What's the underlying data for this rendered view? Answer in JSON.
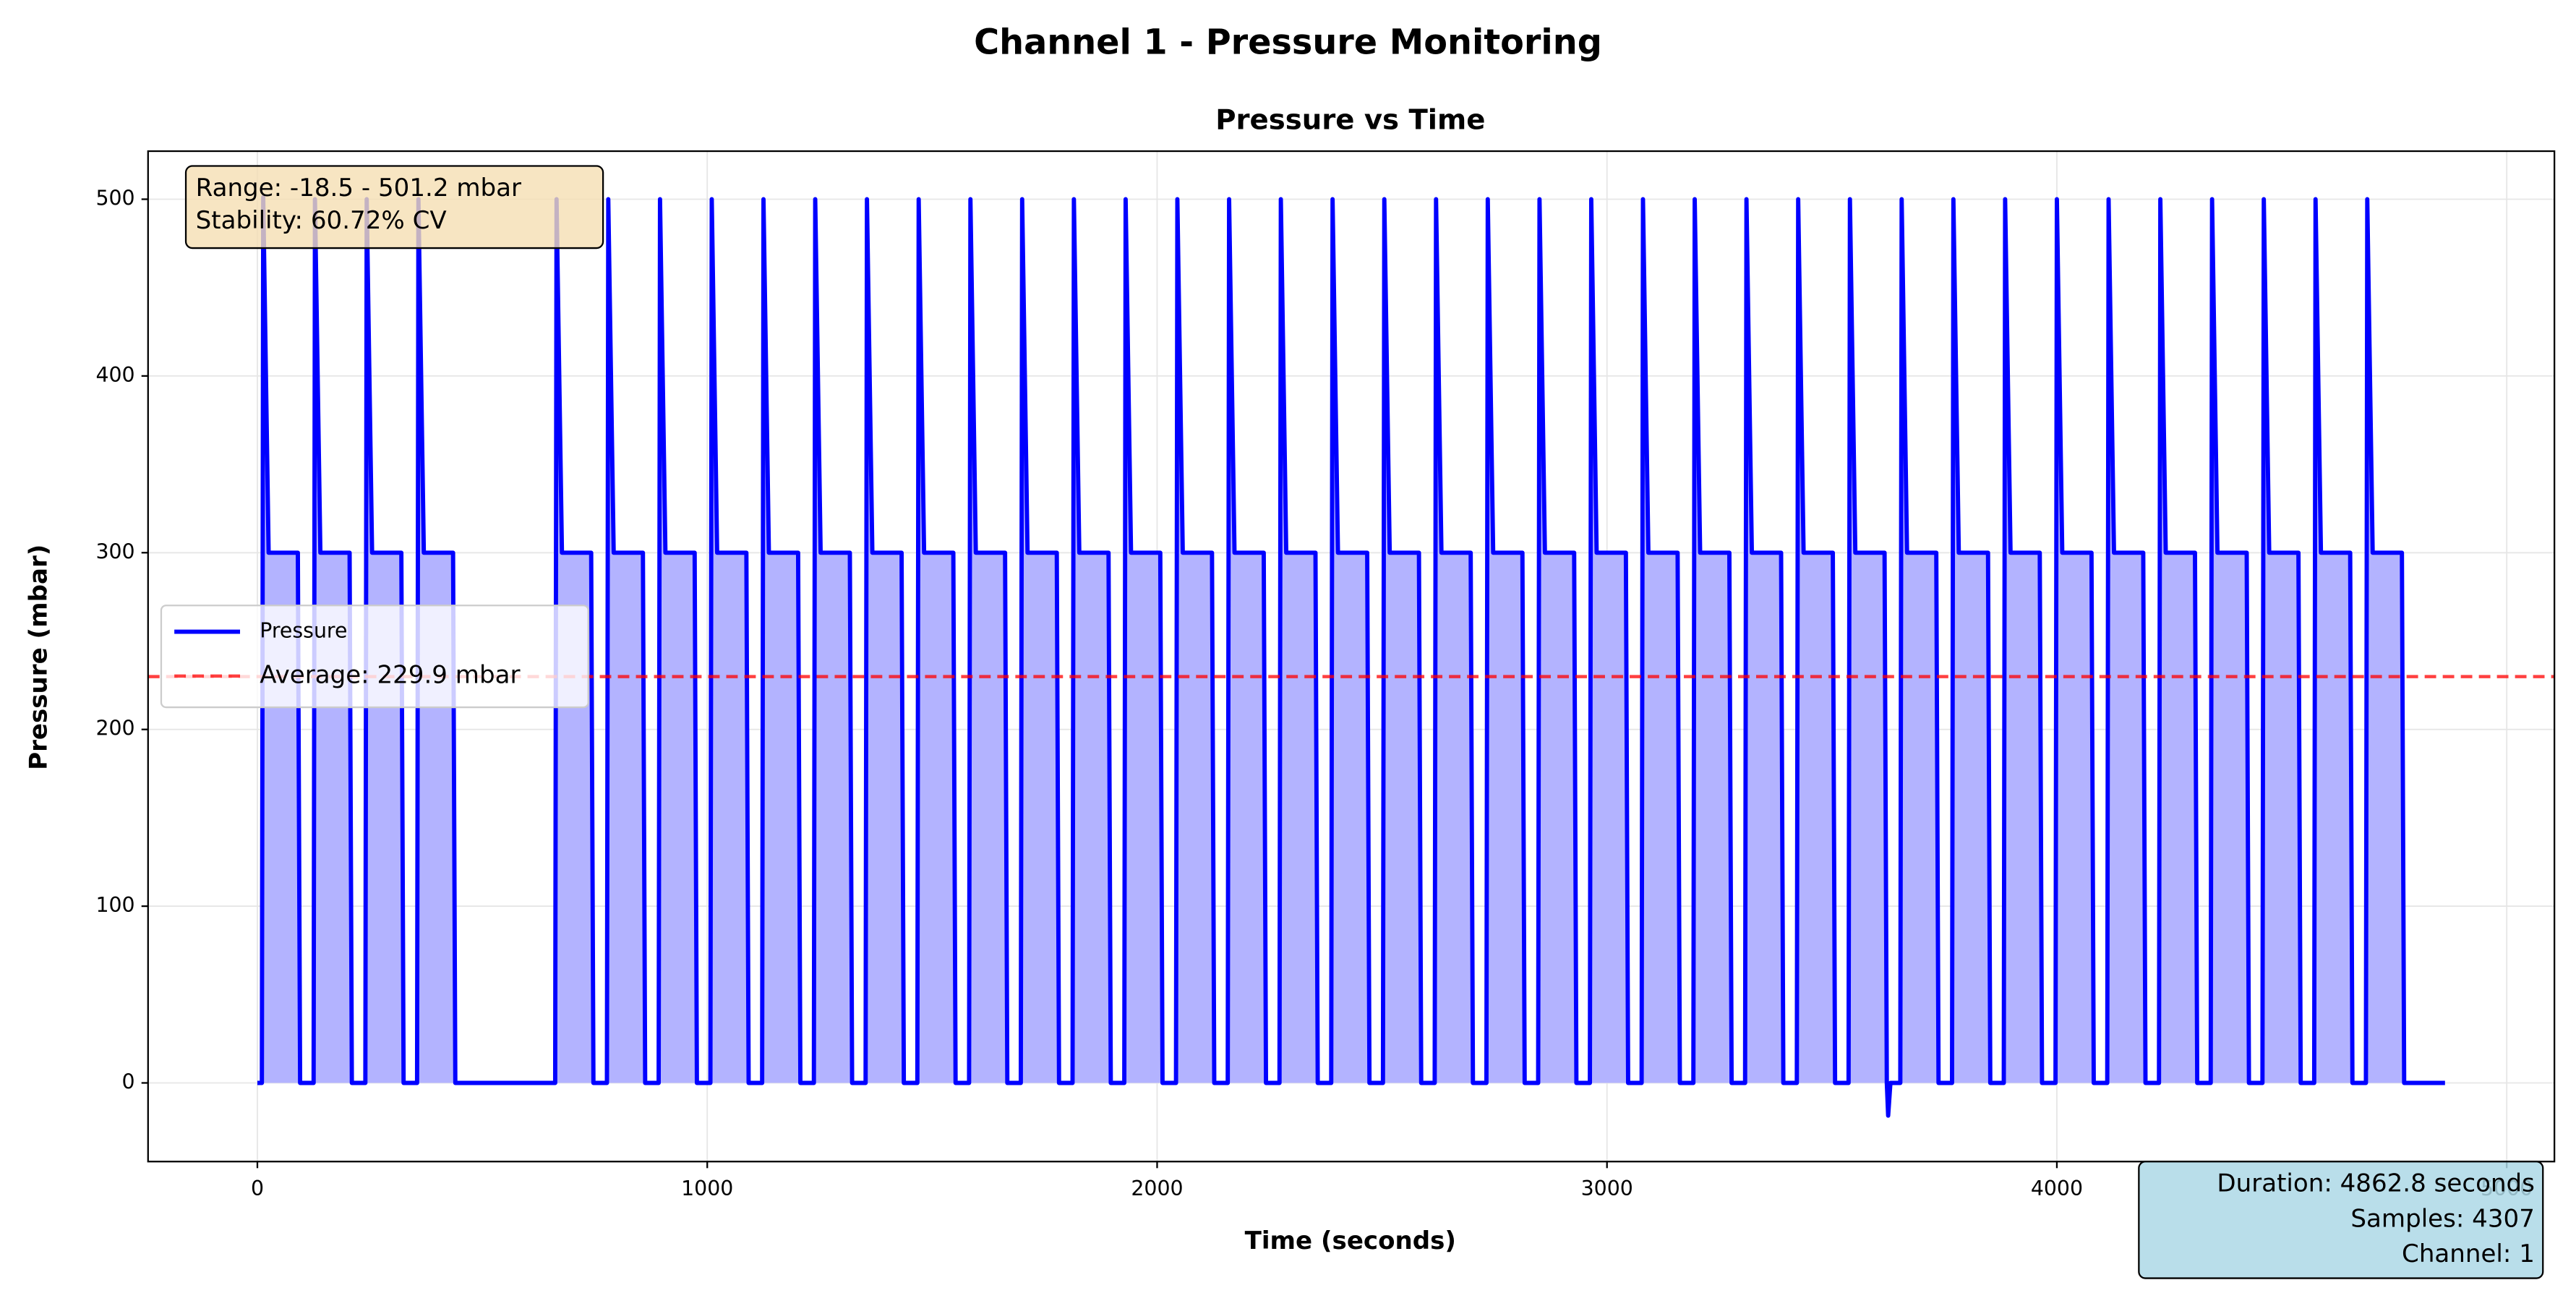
{
  "chart_data": {
    "type": "line",
    "suptitle": "Channel 1 - Pressure Monitoring",
    "title": "Pressure vs Time",
    "x_label": "Time (seconds)",
    "y_label": "Pressure (mbar)",
    "xlim": [
      -243,
      5106
    ],
    "ylim": [
      -44.5,
      527.2
    ],
    "xticks": [
      0,
      1000,
      2000,
      3000,
      4000,
      5000
    ],
    "yticks": [
      0,
      100,
      200,
      300,
      400,
      500
    ],
    "grid": true,
    "legend_loc": "center left",
    "fill_color": "#b3b3ff",
    "x": [
      0,
      10,
      13,
      25,
      90,
      95,
      125,
      128,
      140,
      205,
      210,
      240,
      243,
      255,
      320,
      325,
      355,
      358,
      370,
      435,
      440,
      662,
      665,
      677,
      742,
      747,
      777,
      780,
      792,
      857,
      862,
      892,
      895,
      907,
      972,
      977,
      1007,
      1010,
      1022,
      1087,
      1092,
      1122,
      1125,
      1137,
      1202,
      1207,
      1237,
      1240,
      1252,
      1317,
      1322,
      1352,
      1355,
      1367,
      1432,
      1437,
      1467,
      1470,
      1482,
      1547,
      1552,
      1582,
      1585,
      1597,
      1662,
      1667,
      1697,
      1700,
      1712,
      1777,
      1782,
      1812,
      1815,
      1827,
      1892,
      1897,
      1927,
      1930,
      1942,
      2007,
      2012,
      2042,
      2045,
      2057,
      2122,
      2127,
      2157,
      2160,
      2172,
      2237,
      2242,
      2272,
      2275,
      2287,
      2352,
      2357,
      2387,
      2390,
      2402,
      2467,
      2472,
      2502,
      2505,
      2517,
      2582,
      2587,
      2617,
      2620,
      2632,
      2697,
      2702,
      2732,
      2735,
      2747,
      2812,
      2817,
      2847,
      2850,
      2862,
      2927,
      2932,
      2962,
      2965,
      2977,
      3042,
      3047,
      3077,
      3080,
      3092,
      3157,
      3162,
      3192,
      3195,
      3207,
      3272,
      3277,
      3307,
      3310,
      3322,
      3387,
      3392,
      3422,
      3425,
      3437,
      3502,
      3507,
      3537,
      3540,
      3552,
      3617,
      3622,
      3625,
      3630,
      3652,
      3655,
      3667,
      3732,
      3737,
      3767,
      3770,
      3782,
      3847,
      3852,
      3882,
      3885,
      3897,
      3962,
      3967,
      3997,
      4000,
      4012,
      4077,
      4082,
      4112,
      4115,
      4127,
      4192,
      4197,
      4227,
      4230,
      4242,
      4307,
      4312,
      4342,
      4345,
      4357,
      4422,
      4427,
      4457,
      4460,
      4472,
      4537,
      4542,
      4572,
      4575,
      4587,
      4652,
      4657,
      4687,
      4690,
      4702,
      4767,
      4772,
      4862.8
    ],
    "series": [
      {
        "name": "Pressure",
        "color": "#0000ff",
        "values": [
          0,
          0,
          501.2,
          300,
          300,
          0,
          0,
          500,
          300,
          300,
          0,
          0,
          500,
          300,
          300,
          0,
          0,
          500,
          300,
          300,
          0,
          0,
          500,
          300,
          300,
          0,
          0,
          500,
          300,
          300,
          0,
          0,
          500,
          300,
          300,
          0,
          0,
          500,
          300,
          300,
          0,
          0,
          500,
          300,
          300,
          0,
          0,
          500,
          300,
          300,
          0,
          0,
          500,
          300,
          300,
          0,
          0,
          500,
          300,
          300,
          0,
          0,
          500,
          300,
          300,
          0,
          0,
          500,
          300,
          300,
          0,
          0,
          500,
          300,
          300,
          0,
          0,
          500,
          300,
          300,
          0,
          0,
          500,
          300,
          300,
          0,
          0,
          500,
          300,
          300,
          0,
          0,
          500,
          300,
          300,
          0,
          0,
          500,
          300,
          300,
          0,
          0,
          500,
          300,
          300,
          0,
          0,
          500,
          300,
          300,
          0,
          0,
          500,
          300,
          300,
          0,
          0,
          500,
          300,
          300,
          0,
          0,
          500,
          300,
          300,
          0,
          0,
          500,
          300,
          300,
          0,
          0,
          500,
          300,
          300,
          0,
          0,
          500,
          300,
          300,
          0,
          0,
          500,
          300,
          300,
          0,
          0,
          500,
          300,
          300,
          0,
          -18.5,
          0,
          0,
          500,
          300,
          300,
          0,
          0,
          500,
          300,
          300,
          0,
          0,
          500,
          300,
          300,
          0,
          0,
          500,
          300,
          300,
          0,
          0,
          500,
          300,
          300,
          0,
          0,
          500,
          300,
          300,
          0,
          0,
          500,
          300,
          300,
          0,
          0,
          500,
          300,
          300,
          0,
          0,
          500,
          300,
          300,
          0,
          0,
          500,
          300,
          300,
          0,
          0
        ]
      }
    ],
    "reference_line": {
      "name": "Average: 229.9 mbar",
      "value": 229.9,
      "color": "#ff0000"
    },
    "annotations": [
      {
        "lines": [
          "Range: -18.5 - 501.2 mbar",
          "Stability: 60.72% CV"
        ],
        "color": "#f5deb3"
      },
      {
        "lines": [
          "Duration: 4862.8 seconds",
          "Samples: 4307",
          "Channel: 1"
        ],
        "color": "#add8e6"
      }
    ]
  }
}
